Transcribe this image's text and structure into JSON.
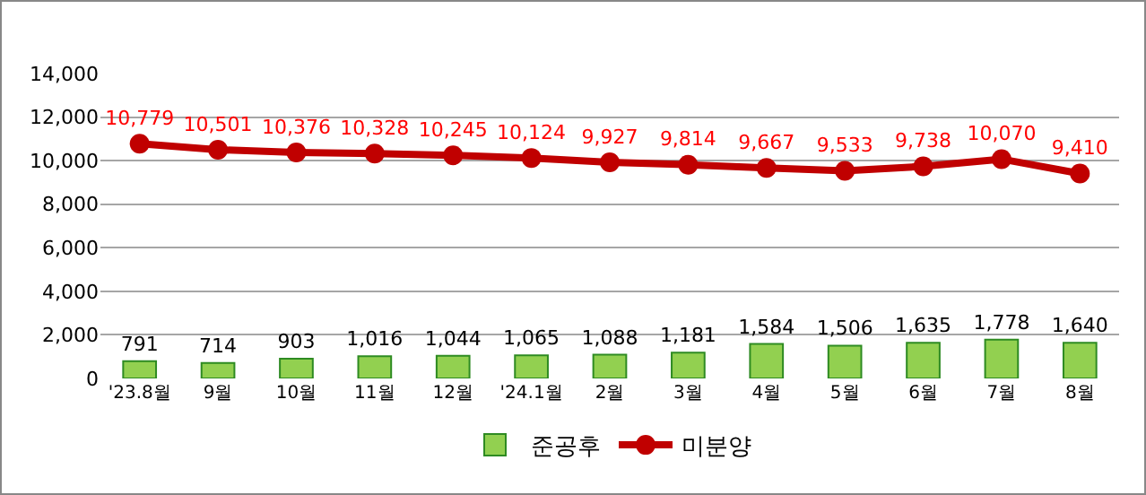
{
  "chart_data": {
    "type": "bar",
    "categories": [
      "'23.8월",
      "9월",
      "10월",
      "11월",
      "12월",
      "'24.1월",
      "2월",
      "3월",
      "4월",
      "5월",
      "6월",
      "7월",
      "8월"
    ],
    "series": [
      {
        "name": "준공후",
        "color": "#92d050",
        "values": [
          791,
          714,
          903,
          1016,
          1044,
          1065,
          1088,
          1181,
          1584,
          1506,
          1635,
          1778,
          1640
        ],
        "value_labels": [
          "791",
          "714",
          "903",
          "1,016",
          "1,044",
          "1,065",
          "1,088",
          "1,181",
          "1,584",
          "1,506",
          "1,635",
          "1,778",
          "1,640"
        ]
      },
      {
        "name": "미분양",
        "type": "line",
        "color": "#c00000",
        "marker": "circle",
        "values": [
          10779,
          10501,
          10376,
          10328,
          10245,
          10124,
          9927,
          9814,
          9667,
          9533,
          9738,
          10070,
          9410
        ],
        "value_labels": [
          "10,779",
          "10,501",
          "10,376",
          "10,328",
          "10,245",
          "10,124",
          "9,927",
          "9,814",
          "9,667",
          "9,533",
          "9,738",
          "10,070",
          "9,410"
        ]
      }
    ],
    "ylim": [
      0,
      14000
    ],
    "yticks": [
      {
        "value": 0,
        "label": "0"
      },
      {
        "value": 2000,
        "label": "2,000"
      },
      {
        "value": 4000,
        "label": "4,000"
      },
      {
        "value": 6000,
        "label": "6,000"
      },
      {
        "value": 8000,
        "label": "8,000"
      },
      {
        "value": 10000,
        "label": "10,000"
      },
      {
        "value": 12000,
        "label": "12,000"
      },
      {
        "value": 14000,
        "label": "14,000"
      }
    ],
    "grid": "y",
    "legend": "bottom"
  }
}
